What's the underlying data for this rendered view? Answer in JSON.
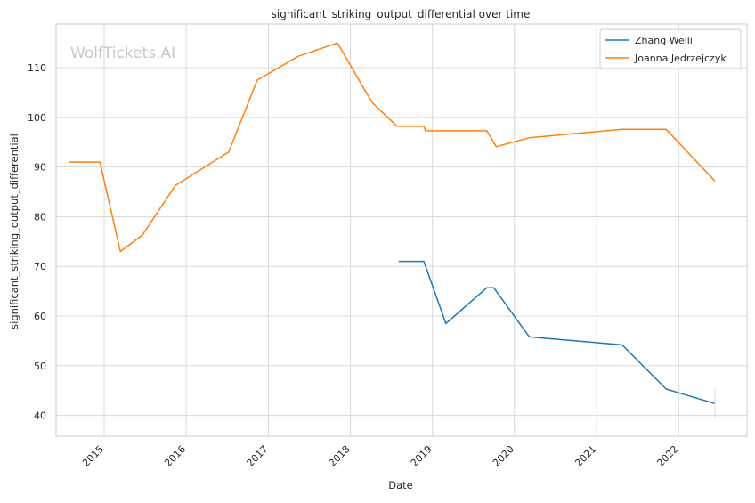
{
  "chart_data": {
    "type": "line",
    "title": "significant_striking_output_differential over time",
    "xlabel": "Date",
    "ylabel": "significant_striking_output_differential",
    "watermark": "WolfTickets.AI",
    "xlim": [
      "2014-06-01",
      "2022-11-01"
    ],
    "ylim": [
      35.8,
      118.8
    ],
    "x_ticks": [
      "2015-01-01",
      "2016-01-01",
      "2017-01-01",
      "2018-01-01",
      "2019-01-01",
      "2020-01-01",
      "2021-01-01",
      "2022-01-01"
    ],
    "x_tick_labels": [
      "2015",
      "2016",
      "2017",
      "2018",
      "2019",
      "2020",
      "2021",
      "2022"
    ],
    "y_ticks": [
      40,
      50,
      60,
      70,
      80,
      90,
      100,
      110
    ],
    "y_tick_labels": [
      "40",
      "50",
      "60",
      "70",
      "80",
      "90",
      "100",
      "110"
    ],
    "grid": true,
    "legend_position": "top-right",
    "series": [
      {
        "name": "Zhang Weili",
        "color": "#1f77b4",
        "points": [
          [
            "2018-08-04",
            71.0
          ],
          [
            "2018-11-24",
            71.0
          ],
          [
            "2019-03-02",
            58.5
          ],
          [
            "2019-08-31",
            65.7
          ],
          [
            "2019-10-01",
            65.7
          ],
          [
            "2020-03-07",
            55.8
          ],
          [
            "2021-04-24",
            54.2
          ],
          [
            "2021-11-06",
            45.3
          ],
          [
            "2022-06-10",
            42.4
          ]
        ]
      },
      {
        "name": "Joanna Jedrzejczyk",
        "color": "#ff7f0e",
        "points": [
          [
            "2014-07-26",
            91.0
          ],
          [
            "2014-12-13",
            91.0
          ],
          [
            "2015-03-14",
            73.0
          ],
          [
            "2015-06-20",
            76.3
          ],
          [
            "2015-11-14",
            86.3
          ],
          [
            "2016-07-08",
            93.0
          ],
          [
            "2016-11-12",
            107.5
          ],
          [
            "2017-05-13",
            112.3
          ],
          [
            "2017-11-04",
            115.0
          ],
          [
            "2018-04-07",
            103.0
          ],
          [
            "2018-07-28",
            98.2
          ],
          [
            "2018-11-24",
            98.2
          ],
          [
            "2018-12-01",
            97.3
          ],
          [
            "2019-08-31",
            97.3
          ],
          [
            "2019-10-12",
            94.1
          ],
          [
            "2020-03-07",
            95.9
          ],
          [
            "2021-04-24",
            97.6
          ],
          [
            "2021-11-06",
            97.6
          ],
          [
            "2022-06-11",
            87.2
          ]
        ]
      }
    ]
  }
}
